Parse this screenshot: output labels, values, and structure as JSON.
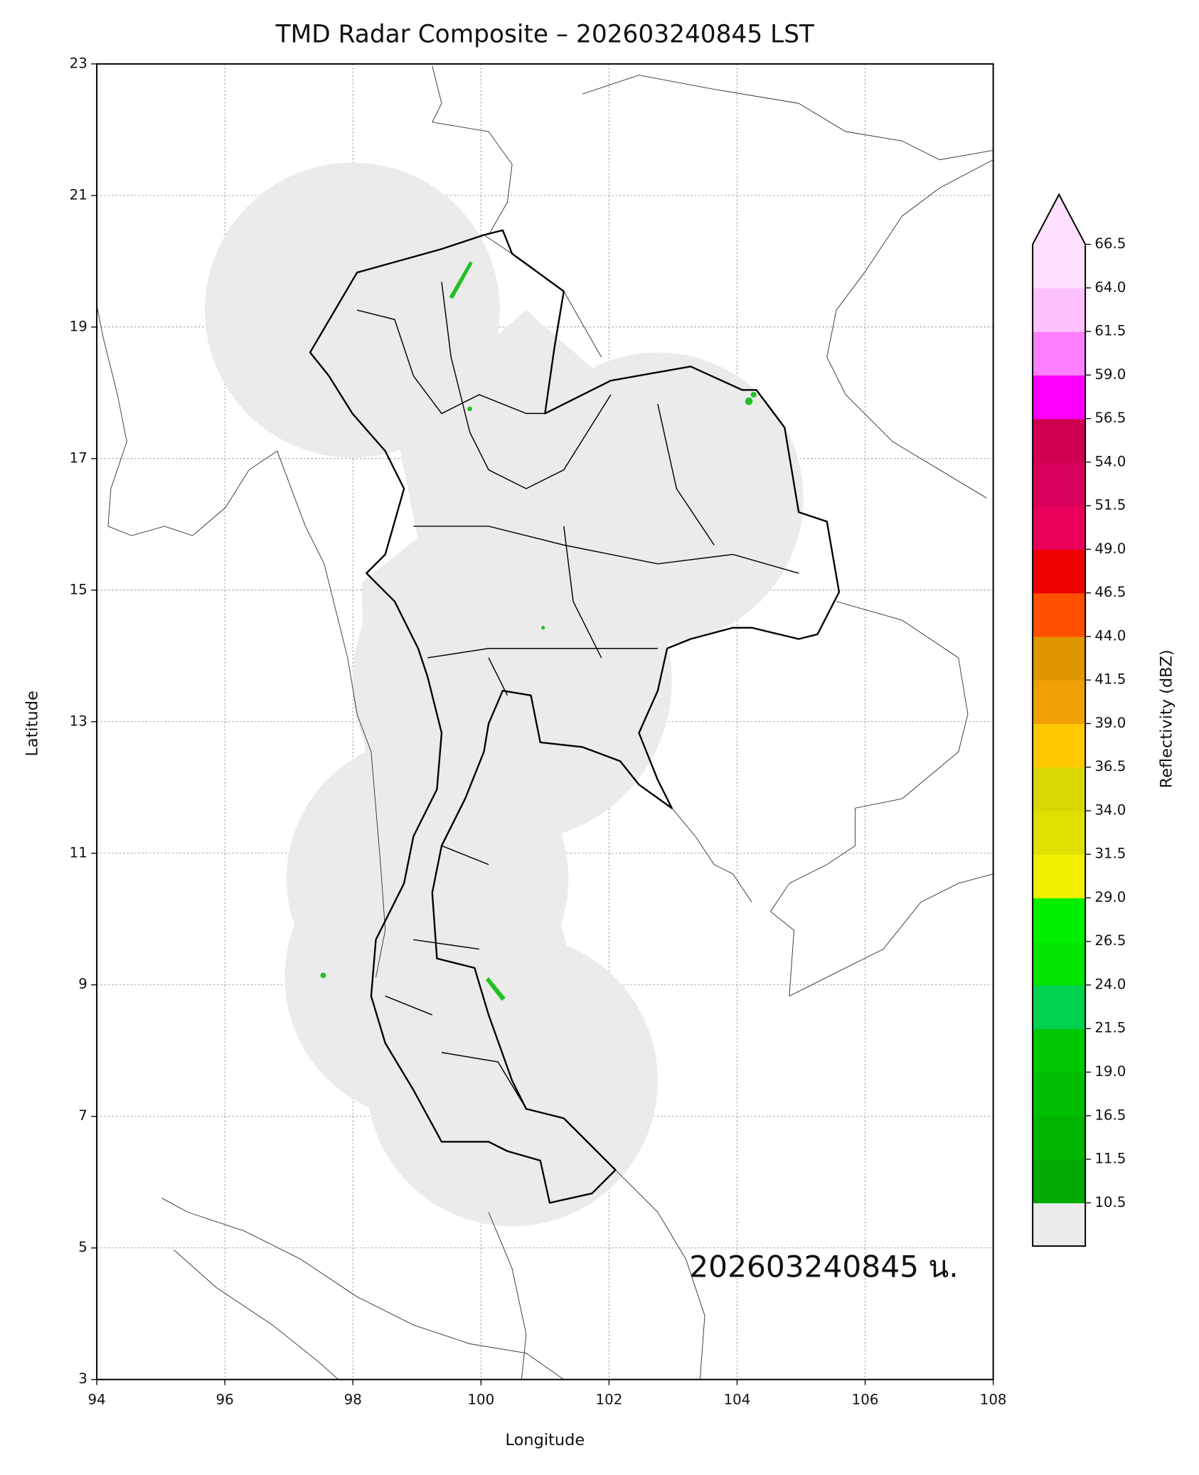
{
  "title": "TMD Radar Composite – 202603240845 LST",
  "x_axis": {
    "label": "Longitude",
    "lim": [
      94,
      108
    ],
    "ticks": [
      94,
      96,
      98,
      100,
      102,
      104,
      106,
      108
    ]
  },
  "y_axis": {
    "label": "Latitude",
    "lim": [
      3,
      23
    ],
    "ticks": [
      3,
      5,
      7,
      9,
      11,
      13,
      15,
      17,
      19,
      21,
      23
    ]
  },
  "grid": true,
  "stamp": "202603240845 น.",
  "colorbar": {
    "label": "Reflectivity (dBZ)",
    "levels": [
      10.5,
      11.5,
      16.5,
      {
        "value": 19,
        "label": "19.0"
      },
      21.5,
      {
        "value": 24,
        "label": "24.0"
      },
      26.5,
      {
        "value": 29,
        "label": "29.0"
      },
      31.5,
      {
        "value": 34,
        "label": "34.0"
      },
      36.5,
      {
        "value": 39,
        "label": "39.0"
      },
      41.5,
      {
        "value": 44,
        "label": "44.0"
      },
      46.5,
      {
        "value": 49,
        "label": "49.0"
      },
      51.5,
      {
        "value": 54,
        "label": "54.0"
      },
      56.5,
      {
        "value": 59,
        "label": "59.0"
      },
      61.5,
      {
        "value": 64,
        "label": "64.0"
      },
      66.5
    ],
    "colors": [
      "#00aa00",
      "#00b400",
      "#00be00",
      "#00c800",
      "#00d250",
      "#00e600",
      "#00f000",
      "#f0f000",
      "#e0e000",
      "#d8d800",
      "#ffc800",
      "#f0a000",
      "#e09600",
      "#ff5000",
      "#f00000",
      "#e8005a",
      "#d8005a",
      "#d00050",
      "#ff00ff",
      "#ff80ff",
      "#ffc0ff",
      "#ffe0ff"
    ],
    "under_color": "#ebebeb",
    "over_color": "#ffe0ff"
  }
}
